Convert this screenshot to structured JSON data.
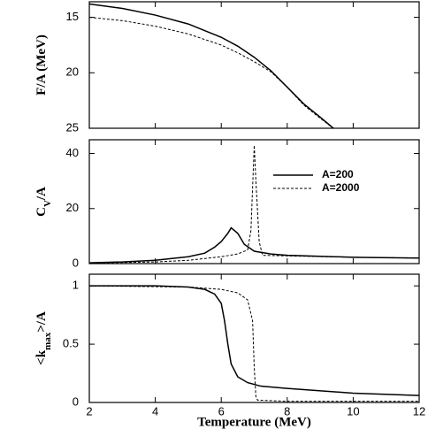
{
  "chart_data": [
    {
      "type": "line",
      "ylabel": [
        "F/A (MeV)"
      ],
      "xlim": [
        2,
        12
      ],
      "ylim": [
        13.6,
        25
      ],
      "y_inverted": true,
      "yticks": [
        15,
        20,
        25
      ],
      "series": [
        {
          "color": "#000000",
          "line_style": "solid",
          "x": [
            2,
            3,
            4,
            5,
            6,
            6.5,
            7,
            7.5,
            8,
            8.5,
            9,
            9.4
          ],
          "values": [
            13.8,
            14.2,
            14.8,
            15.6,
            16.8,
            17.6,
            18.6,
            19.8,
            21.3,
            22.8,
            24.0,
            25
          ]
        },
        {
          "color": "#000000",
          "line_style": "dashed",
          "x": [
            2,
            3,
            4,
            5,
            6,
            6.5,
            7,
            7.5,
            8,
            8.5,
            9,
            9.4
          ],
          "values": [
            15.0,
            15.3,
            15.8,
            16.5,
            17.5,
            18.2,
            19.0,
            19.9,
            21.3,
            22.9,
            24.1,
            25
          ]
        }
      ]
    },
    {
      "type": "line",
      "ylabel": [
        "C",
        "V",
        "/A"
      ],
      "xlim": [
        2,
        12
      ],
      "ylim": [
        0,
        45
      ],
      "yticks": [
        0,
        20,
        40
      ],
      "legend": "upper right",
      "series": [
        {
          "name": "A=200",
          "color": "#000000",
          "line_style": "solid",
          "x": [
            2,
            3,
            4,
            5,
            5.5,
            5.8,
            6.0,
            6.2,
            6.3,
            6.5,
            6.7,
            7,
            7.5,
            8,
            10,
            12
          ],
          "values": [
            0.3,
            0.6,
            1.2,
            2.5,
            3.8,
            6,
            8,
            11,
            13,
            11,
            7,
            4.5,
            3.5,
            3,
            2.3,
            2.0
          ]
        },
        {
          "name": "A=2000",
          "color": "#000000",
          "line_style": "dashed",
          "x": [
            2,
            4,
            5,
            6,
            6.5,
            6.8,
            6.9,
            7.0,
            7.05,
            7.15,
            7.25,
            8,
            10,
            12
          ],
          "values": [
            0.2,
            0.6,
            1.2,
            2.5,
            3.5,
            5,
            12,
            43,
            30,
            8,
            3,
            2.8,
            2.3,
            2.0
          ]
        }
      ]
    },
    {
      "type": "line",
      "ylabel": [
        "<k",
        "max",
        ">/A"
      ],
      "xlabel": "Temperature (MeV)",
      "xlim": [
        2,
        12
      ],
      "ylim": [
        0,
        1.1
      ],
      "yticks": [
        0,
        0.5,
        1
      ],
      "xticks": [
        2,
        4,
        6,
        8,
        10,
        12
      ],
      "series": [
        {
          "color": "#000000",
          "line_style": "solid",
          "x": [
            2,
            4,
            5,
            5.5,
            5.8,
            6.0,
            6.1,
            6.2,
            6.3,
            6.5,
            6.8,
            7.2,
            8,
            10,
            12
          ],
          "values": [
            1,
            1,
            0.99,
            0.97,
            0.93,
            0.85,
            0.7,
            0.5,
            0.33,
            0.22,
            0.17,
            0.14,
            0.12,
            0.08,
            0.06
          ]
        },
        {
          "color": "#000000",
          "line_style": "dashed",
          "x": [
            2,
            5,
            6,
            6.5,
            6.8,
            6.95,
            7.0,
            7.05,
            7.1,
            8,
            12
          ],
          "values": [
            1,
            0.99,
            0.97,
            0.94,
            0.88,
            0.7,
            0.3,
            0.05,
            0.02,
            0.01,
            0.01
          ]
        }
      ]
    }
  ]
}
